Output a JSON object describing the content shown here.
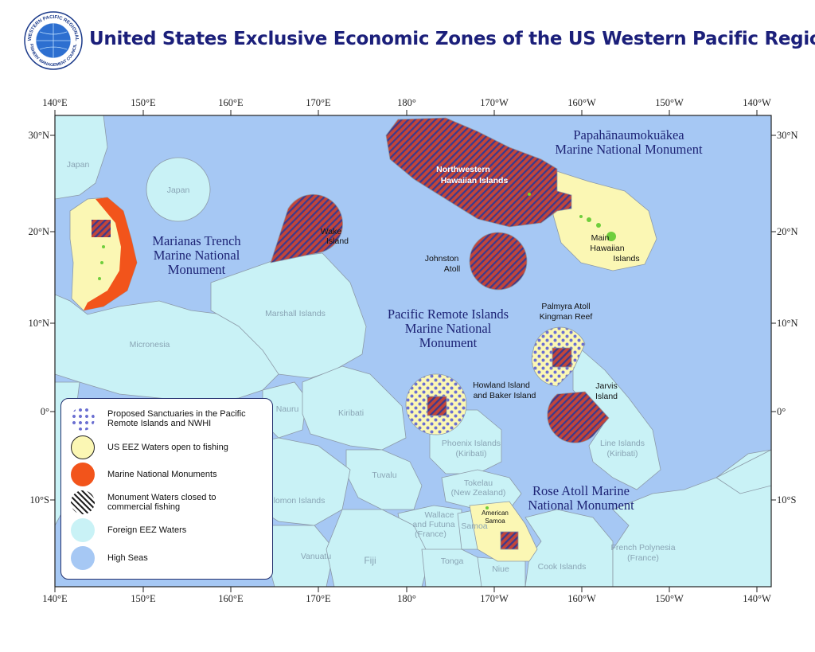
{
  "title": "United States Exclusive Economic Zones of the US Western Pacific Region",
  "logo": {
    "text_top": "WESTERN PACIFIC REGIONAL",
    "text_bottom": "FISHERY MANAGEMENT COUNCIL",
    "icon": "globe-seal-icon"
  },
  "axes": {
    "top": [
      "140°E",
      "150°E",
      "160°E",
      "170°E",
      "180°",
      "170°W",
      "160°W",
      "150°W",
      "140°W"
    ],
    "bottom": [
      "140°E",
      "150°E",
      "160°E",
      "170°E",
      "180°",
      "170°W",
      "160°W",
      "150°W",
      "140°W"
    ],
    "left": [
      "30°N",
      "20°N",
      "10°N",
      "0°",
      "10°S"
    ],
    "right": [
      "30°N",
      "20°N",
      "10°N",
      "0°",
      "10°S"
    ]
  },
  "monuments": {
    "papahanaumokuakea": [
      "Papahānaumokuākea",
      "Marine National Monument"
    ],
    "marianas": [
      "Marianas Trench",
      "Marine National",
      "Monument"
    ],
    "pri": [
      "Pacific Remote Islands",
      "Marine National",
      "Monument"
    ],
    "rose": [
      "Rose Atoll Marine",
      "National Monument"
    ]
  },
  "places": {
    "nwhi": [
      "Northwestern",
      "Hawaiian Islands"
    ],
    "main_hawaii": [
      "Main",
      "Hawaiian",
      "Islands"
    ],
    "wake": [
      "Wake",
      "Island"
    ],
    "johnston": [
      "Johnston",
      "Atoll"
    ],
    "palmyra": [
      "Palmyra Atoll",
      "Kingman Reef"
    ],
    "howland": [
      "Howland Island",
      "and Baker Island"
    ],
    "jarvis": [
      "Jarvis",
      "Island"
    ],
    "american_samoa": [
      "American",
      "Samoa"
    ]
  },
  "foreign": {
    "japan_1": "Japan",
    "japan_2": "Japan",
    "marshall": "Marshall Islands",
    "micronesia": "Micronesia",
    "nauru": "Nauru",
    "kiribati": "Kiribati",
    "phoenix": [
      "Phoenix Islands",
      "(Kiribati)"
    ],
    "line": [
      "Line Islands",
      "(Kiribati)"
    ],
    "tuvalu": "Tuvalu",
    "tokelau": [
      "Tokelau",
      "(New Zealand)"
    ],
    "wallis": [
      "Wallace",
      "and Futuna",
      "(France)"
    ],
    "samoa": "Samoa",
    "solomon": "lomon Islands",
    "vanuatu": "Vanuatu",
    "fiji": "Fiji",
    "tonga": "Tonga",
    "niue": "Niue",
    "cook": "Cook Islands",
    "french_polynesia": [
      "French Polynesia",
      "(France)"
    ]
  },
  "legend": [
    {
      "label": "Proposed Sanctuaries in the Pacific Remote Islands and NWHI",
      "symbol": "dotted"
    },
    {
      "label": "US EEZ Waters open to fishing",
      "symbol": "yellow"
    },
    {
      "label": "Marine National Monuments",
      "symbol": "orange"
    },
    {
      "label": "Monument Waters closed to commercial fishing",
      "symbol": "hatched"
    },
    {
      "label": "Foreign EEZ Waters",
      "symbol": "cyan"
    },
    {
      "label": "High Seas",
      "symbol": "blue"
    }
  ],
  "colors": {
    "high_seas": "#a6c8f4",
    "foreign_eez": "#c9f2f6",
    "us_eez": "#fbf7b4",
    "monument": "#f2541b",
    "hatch_fill": "#c2453a",
    "hatch_stripe": "#3d3a8c",
    "dots": "#6b6fd1",
    "title": "#1b1f7a"
  }
}
